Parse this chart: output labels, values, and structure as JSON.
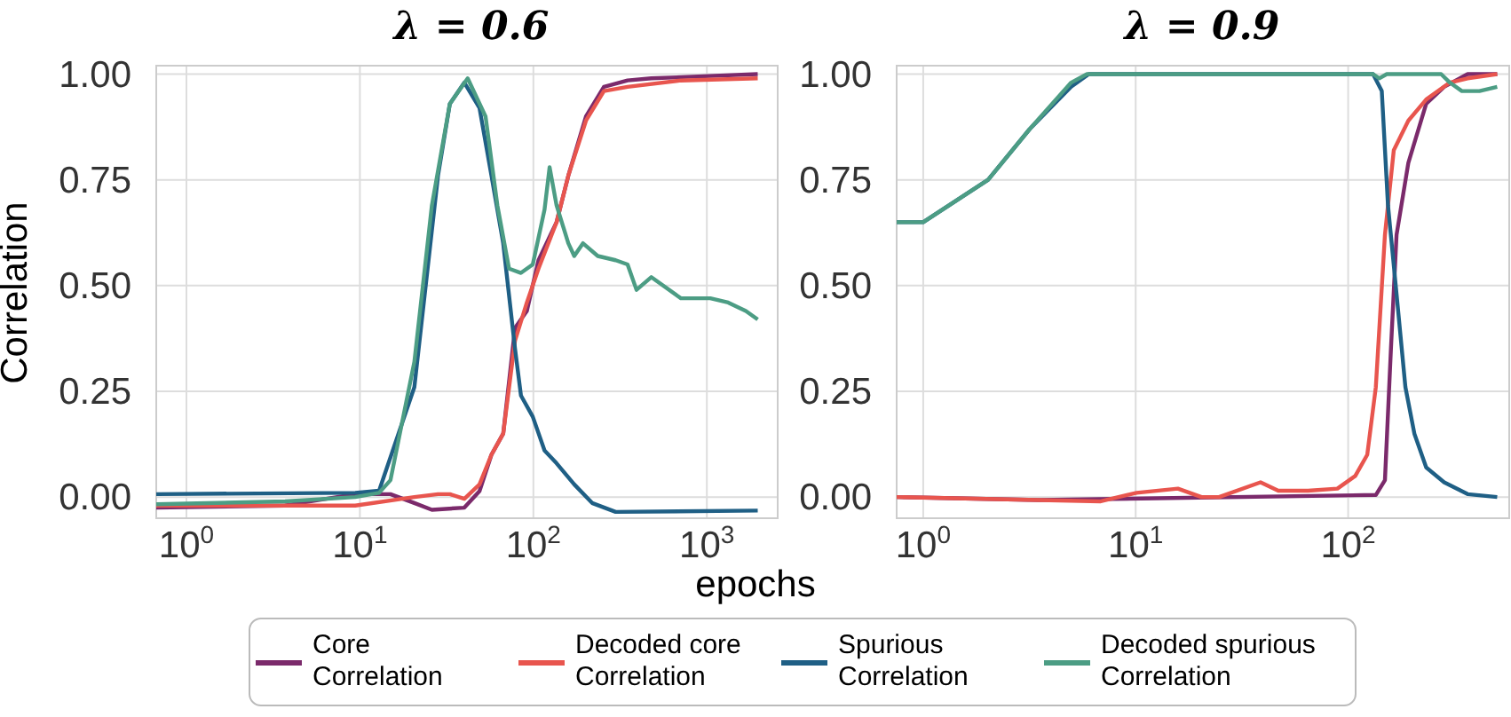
{
  "chart_data": [
    {
      "type": "line",
      "title": "λ = 0.6",
      "xlabel": "epochs",
      "ylabel": "Correlation",
      "log": "x",
      "grid": true,
      "legend": "bottom",
      "line_style": "solid",
      "marker": "none",
      "xlim": [
        0.67,
        2560
      ],
      "xticks": [
        {
          "value": 1,
          "label": "10$^{0}$"
        },
        {
          "value": 10,
          "label": "10$^{1}$"
        },
        {
          "value": 100,
          "label": "10$^{2}$"
        },
        {
          "value": 1000,
          "label": "10$^{3}$"
        }
      ],
      "ylim": [
        -0.05,
        1.02
      ],
      "yticks": [
        {
          "value": 0,
          "label": "0.00"
        },
        {
          "value": 0.25,
          "label": "0.25"
        },
        {
          "value": 0.5,
          "label": "0.50"
        },
        {
          "value": 0.75,
          "label": "0.75"
        },
        {
          "value": 1,
          "label": "1.00"
        }
      ],
      "series": [
        {
          "name": "Core Correlation",
          "color": "#7b2a6b",
          "x": [
            0.67,
            3.7,
            9.4,
            15,
            20.6,
            26,
            40,
            48.9,
            57.3,
            67,
            78.4,
            91.7,
            107,
            136,
            159,
            201,
            255,
            349,
            478,
            1964
          ],
          "values": [
            -0.025,
            -0.02,
            0.007,
            0.007,
            -0.014,
            -0.03,
            -0.025,
            0.014,
            0.1,
            0.15,
            0.4,
            0.44,
            0.56,
            0.65,
            0.76,
            0.9,
            0.97,
            0.985,
            0.99,
            1.0
          ]
        },
        {
          "name": "Decoded core Correlation",
          "color": "#e8554e",
          "x": [
            0.67,
            9.4,
            20.6,
            28.2,
            33,
            40,
            48.9,
            57.3,
            67,
            78.4,
            91.7,
            107,
            136,
            159,
            201,
            255,
            349,
            708,
            1964
          ],
          "values": [
            -0.02,
            -0.02,
            0,
            0.007,
            0.007,
            -0.004,
            0.03,
            0.1,
            0.15,
            0.37,
            0.46,
            0.54,
            0.65,
            0.76,
            0.89,
            0.96,
            0.97,
            0.985,
            0.99
          ]
        },
        {
          "name": "Spurious Correlation",
          "color": "#1f5f85",
          "x": [
            0.67,
            9.4,
            12.9,
            20.6,
            28.2,
            33,
            40,
            48.9,
            57.3,
            67,
            78.4,
            84.8,
            99.2,
            116,
            136,
            172,
            218,
            298,
            1964
          ],
          "values": [
            0.007,
            0.01,
            0.015,
            0.26,
            0.76,
            0.93,
            0.98,
            0.92,
            0.76,
            0.6,
            0.35,
            0.24,
            0.19,
            0.11,
            0.08,
            0.03,
            -0.014,
            -0.035,
            -0.032
          ]
        },
        {
          "name": "Decoded spurious Correlation",
          "color": "#4c9d84",
          "x": [
            0.67,
            3.7,
            9.4,
            12.9,
            15,
            20.6,
            26,
            33,
            41.8,
            53,
            62,
            72.4,
            84.8,
            99.2,
            116,
            124,
            136,
            159,
            172,
            193,
            235,
            298,
            349,
            393,
            478,
            708,
            1047,
            1327,
            1679,
            1964
          ],
          "values": [
            -0.017,
            -0.01,
            0,
            0.01,
            0.04,
            0.32,
            0.69,
            0.93,
            0.99,
            0.9,
            0.69,
            0.54,
            0.53,
            0.55,
            0.68,
            0.78,
            0.69,
            0.6,
            0.57,
            0.6,
            0.57,
            0.56,
            0.55,
            0.49,
            0.52,
            0.47,
            0.47,
            0.46,
            0.44,
            0.42
          ]
        }
      ]
    },
    {
      "type": "line",
      "title": "λ = 0.9",
      "log": "x",
      "grid": true,
      "line_style": "solid",
      "marker": "none",
      "xlim": [
        0.75,
        573
      ],
      "xticks": [
        {
          "value": 1,
          "label": "10$^{0}$"
        },
        {
          "value": 10,
          "label": "10$^{1}$"
        },
        {
          "value": 100,
          "label": "10$^{2}$"
        }
      ],
      "ylim": [
        -0.05,
        1.02
      ],
      "yticks": [
        {
          "value": 0,
          "label": "0.00"
        },
        {
          "value": 0.25,
          "label": "0.25"
        },
        {
          "value": 0.5,
          "label": "0.50"
        },
        {
          "value": 0.75,
          "label": "0.75"
        },
        {
          "value": 1,
          "label": "1.00"
        }
      ],
      "series": [
        {
          "color": "#7b2a6b",
          "x": [
            0.75,
            3.5,
            135,
            149,
            159,
            169,
            192,
            233,
            283,
            365,
            503
          ],
          "values": [
            0,
            -0.007,
            0.005,
            0.04,
            0.35,
            0.62,
            0.79,
            0.93,
            0.97,
            1.0,
            1.0
          ]
        },
        {
          "color": "#e8554e",
          "x": [
            0.75,
            3.5,
            6.85,
            10.1,
            15.8,
            20.4,
            24.7,
            38.7,
            46.9,
            64.7,
            89,
            108,
            123,
            135,
            149,
            164,
            192,
            233,
            301,
            365,
            503
          ],
          "values": [
            0,
            -0.007,
            -0.01,
            0.01,
            0.02,
            0,
            0,
            0.035,
            0.015,
            0.015,
            0.02,
            0.05,
            0.1,
            0.26,
            0.62,
            0.82,
            0.89,
            0.94,
            0.98,
            0.99,
            1.0
          ]
        },
        {
          "color": "#1f5f85",
          "x": [
            0.75,
            1,
            2.02,
            3.17,
            4.97,
            6.02,
            131,
            144,
            154,
            169,
            186,
            205,
            233,
            283,
            365,
            503
          ],
          "values": [
            0.65,
            0.65,
            0.75,
            0.87,
            0.97,
            1.0,
            1.0,
            0.96,
            0.69,
            0.48,
            0.26,
            0.15,
            0.07,
            0.035,
            0.007,
            0
          ]
        },
        {
          "color": "#4c9d84",
          "x": [
            0.75,
            1,
            2.02,
            3.17,
            4.97,
            5.9,
            131,
            140,
            152,
            274,
            301,
            343,
            415,
            503
          ],
          "values": [
            0.65,
            0.65,
            0.75,
            0.87,
            0.98,
            1.0,
            1.0,
            0.99,
            1.0,
            1.0,
            0.98,
            0.96,
            0.96,
            0.97
          ]
        }
      ]
    }
  ]
}
